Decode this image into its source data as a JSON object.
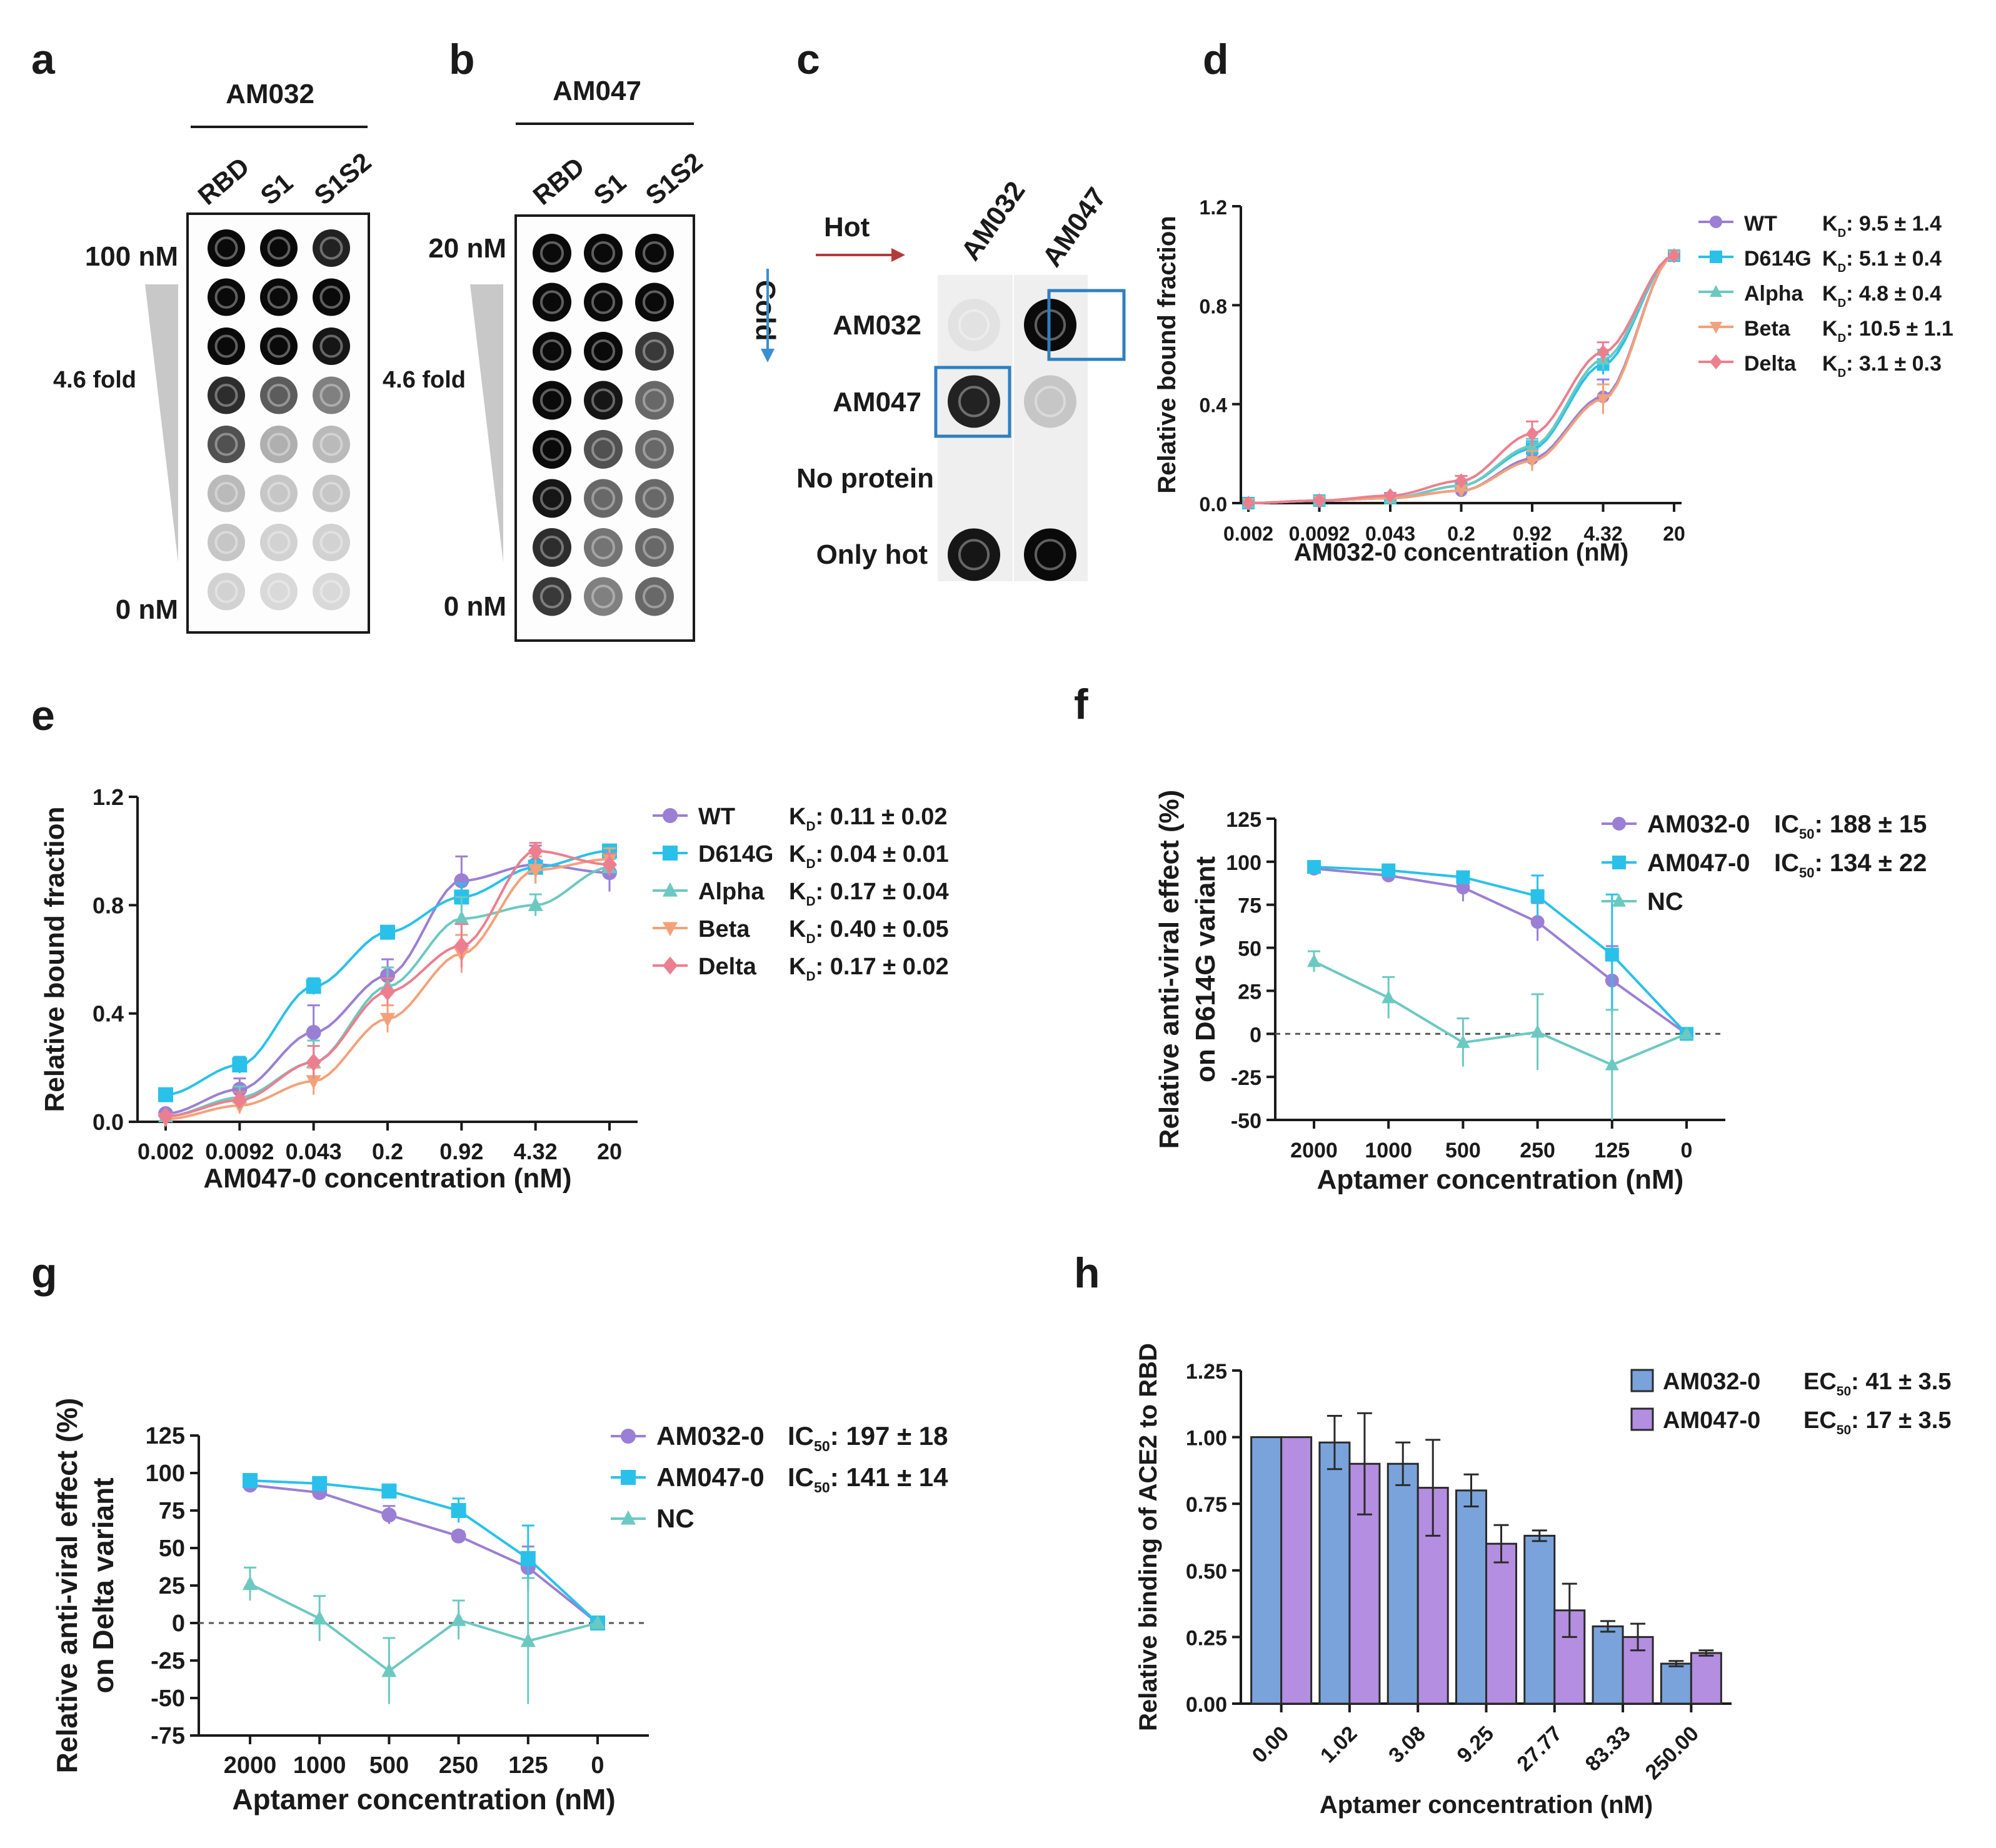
{
  "panel_letters": {
    "a": "a",
    "b": "b",
    "c": "c",
    "d": "d",
    "e": "e",
    "f": "f",
    "g": "g",
    "h": "h"
  },
  "blot_a": {
    "aptamer": "AM032",
    "columns": [
      "RBD",
      "S1",
      "S1S2"
    ],
    "top_label": "100 nM",
    "bottom_label": "0 nM",
    "fold_label": "4.6 fold",
    "intensity": [
      [
        1.0,
        1.0,
        0.9
      ],
      [
        1.0,
        1.0,
        1.0
      ],
      [
        1.0,
        1.0,
        0.95
      ],
      [
        0.85,
        0.65,
        0.5
      ],
      [
        0.7,
        0.3,
        0.25
      ],
      [
        0.25,
        0.2,
        0.2
      ],
      [
        0.2,
        0.15,
        0.15
      ],
      [
        0.15,
        0.12,
        0.12
      ]
    ]
  },
  "blot_b": {
    "aptamer": "AM047",
    "columns": [
      "RBD",
      "S1",
      "S1S2"
    ],
    "top_label": "20 nM",
    "bottom_label": "0 nM",
    "fold_label": "4.6 fold",
    "intensity": [
      [
        1.0,
        1.0,
        1.0
      ],
      [
        1.0,
        1.0,
        1.0
      ],
      [
        1.0,
        1.0,
        0.8
      ],
      [
        1.0,
        0.95,
        0.6
      ],
      [
        1.0,
        0.7,
        0.6
      ],
      [
        0.95,
        0.6,
        0.6
      ],
      [
        0.85,
        0.55,
        0.6
      ],
      [
        0.8,
        0.5,
        0.6
      ]
    ]
  },
  "blot_c": {
    "hot_label": "Hot",
    "cold_label": "Cold",
    "columns": [
      "AM032",
      "AM047"
    ],
    "rows": [
      "AM032",
      "AM047",
      "No protein",
      "Only hot"
    ],
    "intensity": [
      [
        0.08,
        1.0
      ],
      [
        0.9,
        0.2
      ],
      [
        0.0,
        0.0
      ],
      [
        0.95,
        1.0
      ]
    ]
  },
  "colors": {
    "wt": "#9b7fd4",
    "d614g": "#29c1ea",
    "alpha": "#6cc9c1",
    "beta": "#f2a27a",
    "delta": "#ec7f8f",
    "nc": "#6cc9c1",
    "bar_am032": "#7aa3dc",
    "bar_am047": "#b48ee0",
    "arrow_hot": "#b33a3a",
    "arrow_cold": "#3a8fd0"
  },
  "chart_data": [
    {
      "panel": "d",
      "type": "line",
      "xlabel": "AM032-0 concentration (nM)",
      "ylabel": "Relative bound fraction",
      "categories": [
        "0.002",
        "0.0092",
        "0.043",
        "0.2",
        "0.92",
        "4.32",
        "20"
      ],
      "ylim": [
        0,
        1.2
      ],
      "yticks": [
        "0.0",
        "0.4",
        "0.8",
        "1.2"
      ],
      "series": [
        {
          "name": "WT",
          "kd": "9.5 ± 1.4",
          "color": "wt",
          "shape": "circle",
          "values": [
            0.0,
            0.01,
            0.02,
            0.05,
            0.18,
            0.43,
            1.0
          ],
          "err": [
            0.0,
            0.0,
            0.01,
            0.02,
            0.05,
            0.07,
            0.0
          ]
        },
        {
          "name": "D614G",
          "kd": "5.1 ± 0.4",
          "color": "d614g",
          "shape": "square",
          "values": [
            0.0,
            0.01,
            0.02,
            0.07,
            0.22,
            0.56,
            1.0
          ],
          "err": [
            0.0,
            0.0,
            0.01,
            0.02,
            0.03,
            0.04,
            0.0
          ]
        },
        {
          "name": "Alpha",
          "kd": "4.8 ± 0.4",
          "color": "alpha",
          "shape": "triangle",
          "values": [
            0.0,
            0.01,
            0.02,
            0.07,
            0.23,
            0.58,
            1.0
          ],
          "err": [
            0.0,
            0.0,
            0.01,
            0.02,
            0.03,
            0.04,
            0.0
          ]
        },
        {
          "name": "Beta",
          "kd": "10.5 ± 1.1",
          "color": "beta",
          "shape": "triangle-down",
          "values": [
            0.0,
            0.01,
            0.02,
            0.05,
            0.17,
            0.42,
            1.0
          ],
          "err": [
            0.0,
            0.0,
            0.01,
            0.02,
            0.04,
            0.06,
            0.0
          ]
        },
        {
          "name": "Delta",
          "kd": "3.1 ± 0.3",
          "color": "delta",
          "shape": "diamond",
          "values": [
            0.0,
            0.01,
            0.03,
            0.09,
            0.28,
            0.61,
            1.0
          ],
          "err": [
            0.0,
            0.0,
            0.01,
            0.02,
            0.05,
            0.04,
            0.0
          ]
        }
      ]
    },
    {
      "panel": "e",
      "type": "line",
      "xlabel": "AM047-0 concentration (nM)",
      "ylabel": "Relative bound fraction",
      "categories": [
        "0.002",
        "0.0092",
        "0.043",
        "0.2",
        "0.92",
        "4.32",
        "20"
      ],
      "ylim": [
        0,
        1.2
      ],
      "yticks": [
        "0.0",
        "0.4",
        "0.8",
        "1.2"
      ],
      "series": [
        {
          "name": "WT",
          "kd": "0.11 ± 0.02",
          "color": "wt",
          "shape": "circle",
          "values": [
            0.03,
            0.12,
            0.33,
            0.54,
            0.89,
            0.95,
            0.92
          ],
          "err": [
            0.01,
            0.04,
            0.1,
            0.06,
            0.09,
            0.07,
            0.07
          ]
        },
        {
          "name": "D614G",
          "kd": "0.04 ± 0.01",
          "color": "d614g",
          "shape": "square",
          "values": [
            0.1,
            0.21,
            0.5,
            0.7,
            0.83,
            0.94,
            1.0
          ],
          "err": [
            0.0,
            0.03,
            0.03,
            0.02,
            0.05,
            0.04,
            0.0
          ]
        },
        {
          "name": "Alpha",
          "kd": "0.17 ± 0.04",
          "color": "alpha",
          "shape": "triangle",
          "values": [
            0.02,
            0.09,
            0.22,
            0.5,
            0.75,
            0.8,
            0.94
          ],
          "err": [
            0.01,
            0.04,
            0.08,
            0.07,
            0.08,
            0.04,
            0.03
          ]
        },
        {
          "name": "Beta",
          "kd": "0.40 ± 0.05",
          "color": "beta",
          "shape": "triangle-down",
          "values": [
            0.01,
            0.06,
            0.15,
            0.38,
            0.62,
            0.93,
            0.97
          ],
          "err": [
            0.01,
            0.03,
            0.05,
            0.05,
            0.07,
            0.05,
            0.04
          ]
        },
        {
          "name": "Delta",
          "kd": "0.17 ± 0.02",
          "color": "delta",
          "shape": "diamond",
          "values": [
            0.02,
            0.08,
            0.22,
            0.48,
            0.65,
            1.0,
            0.95
          ],
          "err": [
            0.01,
            0.03,
            0.06,
            0.05,
            0.08,
            0.03,
            0.04
          ]
        }
      ]
    },
    {
      "panel": "f",
      "type": "line",
      "xlabel": "Aptamer concentration (nM)",
      "ylabel": "Relative anti-viral effect (%)",
      "ylabel2": "on D614G variant",
      "categories": [
        "2000",
        "1000",
        "500",
        "250",
        "125",
        "0"
      ],
      "ylim": [
        -50,
        125
      ],
      "yticks": [
        "-50",
        "-25",
        "0",
        "25",
        "50",
        "75",
        "100",
        "125"
      ],
      "series": [
        {
          "name": "AM032-0",
          "metric": "IC",
          "value": "188 ± 15",
          "color": "wt",
          "shape": "circle",
          "values": [
            96,
            92,
            85,
            65,
            31,
            0
          ],
          "err": [
            2,
            4,
            8,
            11,
            20,
            0
          ]
        },
        {
          "name": "AM047-0",
          "metric": "IC",
          "value": "134 ± 22",
          "color": "d614g",
          "shape": "square",
          "values": [
            97,
            95,
            91,
            80,
            46,
            0
          ],
          "err": [
            2,
            3,
            3,
            12,
            35,
            0
          ]
        },
        {
          "name": "NC",
          "color": "nc",
          "shape": "triangle",
          "values": [
            42,
            21,
            -5,
            1,
            -18,
            0
          ],
          "err": [
            6,
            12,
            14,
            22,
            32,
            0
          ]
        }
      ]
    },
    {
      "panel": "g",
      "type": "line",
      "xlabel": "Aptamer concentration (nM)",
      "ylabel": "Relative anti-viral effect (%)",
      "ylabel2": "on Delta variant",
      "categories": [
        "2000",
        "1000",
        "500",
        "250",
        "125",
        "0"
      ],
      "ylim": [
        -75,
        125
      ],
      "yticks": [
        "-75",
        "-50",
        "-25",
        "0",
        "25",
        "50",
        "75",
        "100",
        "125"
      ],
      "series": [
        {
          "name": "AM032-0",
          "metric": "IC",
          "value": "197 ± 18",
          "color": "wt",
          "shape": "circle",
          "values": [
            92,
            87,
            72,
            58,
            37,
            0
          ],
          "err": [
            3,
            3,
            6,
            3,
            14,
            0
          ]
        },
        {
          "name": "AM047-0",
          "metric": "IC",
          "value": "141 ± 14",
          "color": "d614g",
          "shape": "square",
          "values": [
            95,
            93,
            88,
            75,
            43,
            0
          ],
          "err": [
            2,
            2,
            3,
            8,
            22,
            0
          ]
        },
        {
          "name": "NC",
          "color": "nc",
          "shape": "triangle",
          "values": [
            26,
            3,
            -32,
            2,
            -12,
            0
          ],
          "err": [
            11,
            15,
            22,
            13,
            42,
            0
          ]
        }
      ]
    },
    {
      "panel": "h",
      "type": "bar",
      "xlabel": "Aptamer concentration (nM)",
      "ylabel": "Relative binding of ACE2 to RBD",
      "categories": [
        "0.00",
        "1.02",
        "3.08",
        "9.25",
        "27.77",
        "83.33",
        "250.00"
      ],
      "ylim": [
        0,
        1.25
      ],
      "yticks": [
        "0.00",
        "0.25",
        "0.50",
        "0.75",
        "1.00",
        "1.25"
      ],
      "series": [
        {
          "name": "AM032-0",
          "metric": "EC",
          "value": "41 ± 3.5",
          "color": "bar_am032",
          "values": [
            1.0,
            0.98,
            0.9,
            0.8,
            0.63,
            0.29,
            0.15
          ],
          "err": [
            0.0,
            0.1,
            0.08,
            0.06,
            0.02,
            0.02,
            0.01
          ]
        },
        {
          "name": "AM047-0",
          "metric": "EC",
          "value": "17 ± 3.5",
          "color": "bar_am047",
          "values": [
            1.0,
            0.9,
            0.81,
            0.6,
            0.35,
            0.25,
            0.19
          ],
          "err": [
            0.0,
            0.19,
            0.18,
            0.07,
            0.1,
            0.05,
            0.01
          ]
        }
      ]
    }
  ]
}
